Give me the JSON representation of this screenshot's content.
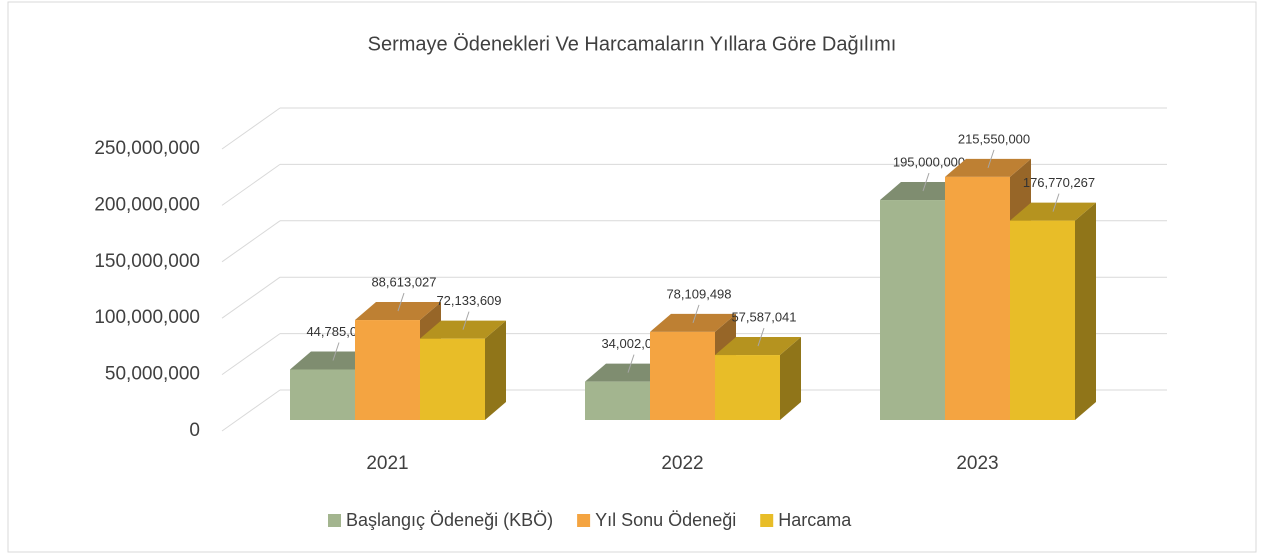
{
  "chart_data": {
    "type": "bar3d",
    "title": "Sermaye Ödenekleri Ve Harcamaların Yıllara Göre Dağılımı",
    "categories": [
      "2021",
      "2022",
      "2023"
    ],
    "series": [
      {
        "name": "Başlangıç Ödeneği (KBÖ)",
        "color": "#a3b58f",
        "values": [
          44785000,
          34002000,
          195000000
        ],
        "value_labels": [
          "44,785,000",
          "34,002,000",
          "195,000,000"
        ]
      },
      {
        "name": "Yıl Sonu Ödeneği",
        "color": "#f4a441",
        "values": [
          88613027,
          78109498,
          215550000
        ],
        "value_labels": [
          "88,613,027",
          "78,109,498",
          "215,550,000"
        ]
      },
      {
        "name": "Harcama",
        "color": "#e8bd28",
        "values": [
          72133609,
          57587041,
          176770267
        ],
        "value_labels": [
          "72,133,609",
          "57,587,041",
          "176,770,267"
        ]
      }
    ],
    "ylim": [
      0,
      250000000
    ],
    "yticks": [
      {
        "value": 0,
        "label": "0"
      },
      {
        "value": 50000000,
        "label": "50,000,000"
      },
      {
        "value": 100000000,
        "label": "100,000,000"
      },
      {
        "value": 150000000,
        "label": "150,000,000"
      },
      {
        "value": 200000000,
        "label": "200,000,000"
      },
      {
        "value": 250000000,
        "label": "250,000,000"
      }
    ],
    "grid": true,
    "legend": "bottom"
  }
}
